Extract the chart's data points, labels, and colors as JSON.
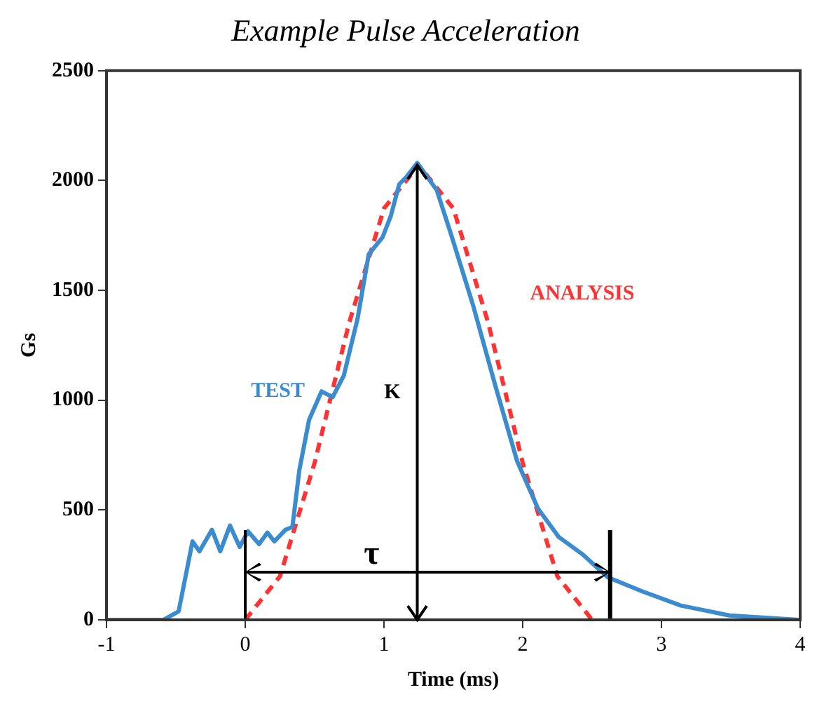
{
  "chart_data": {
    "type": "line",
    "title": "Example Pulse Acceleration",
    "xlabel": "Time (ms)",
    "ylabel": "Gs",
    "xlim": [
      -1,
      4
    ],
    "xticks": [
      -1,
      0,
      1,
      2,
      3,
      4
    ],
    "ylim": [
      0,
      2500
    ],
    "yticks": [
      0,
      500,
      1000,
      1500,
      2000,
      2500
    ],
    "grid": false,
    "legend": false,
    "marker": "none",
    "series": [
      {
        "name": "TEST",
        "color": "#3a8ccf",
        "line_style": "solid",
        "x": [
          -1,
          -0.59,
          -0.48,
          -0.38,
          -0.33,
          -0.24,
          -0.18,
          -0.11,
          -0.04,
          0.02,
          0.1,
          0.16,
          0.21,
          0.29,
          0.34,
          0.39,
          0.46,
          0.55,
          0.63,
          0.71,
          0.81,
          0.89,
          0.99,
          1.05,
          1.11,
          1.16,
          1.24,
          1.38,
          1.48,
          1.64,
          1.8,
          1.96,
          2.11,
          2.26,
          2.43,
          2.61,
          2.86,
          3.14,
          3.49,
          3.99
        ],
        "values": [
          0,
          0,
          39,
          357,
          312,
          410,
          312,
          429,
          332,
          403,
          345,
          397,
          357,
          410,
          423,
          682,
          910,
          1040,
          1014,
          1111,
          1372,
          1664,
          1742,
          1840,
          1983,
          2015,
          2080,
          1957,
          1762,
          1437,
          1072,
          722,
          507,
          377,
          299,
          195,
          130,
          65,
          20,
          0
        ]
      },
      {
        "name": "ANALYSIS",
        "color": "#ff3333",
        "line_style": "dashed",
        "x": [
          0,
          0.25,
          0.5,
          0.75,
          1,
          1.25,
          1.5,
          1.75,
          2,
          2.25,
          2.5
        ],
        "values": [
          0,
          198,
          715,
          1355,
          1873,
          2070,
          1873,
          1355,
          715,
          198,
          0
        ]
      }
    ],
    "ref_lines": [
      {
        "axis": "x",
        "value": 0
      },
      {
        "axis": "x",
        "value": 2.63
      },
      {
        "axis": "x",
        "value": 1.24,
        "label": "K"
      }
    ],
    "annotations": [
      "τ"
    ]
  }
}
